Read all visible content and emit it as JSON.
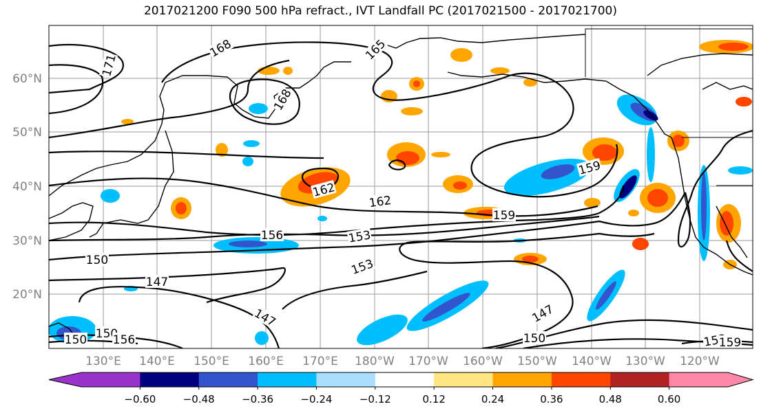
{
  "title": "2017021200 F090 500 hPa refract., IVT Landfall PC (2017021500 - 2017021700)",
  "lat_labels": [
    "60°N",
    "50°N",
    "40°N",
    "30°N",
    "20°N"
  ],
  "lon_labels": [
    "130°E",
    "140°E",
    "150°E",
    "160°E",
    "170°E",
    "180°W",
    "170°W",
    "160°W",
    "150°W",
    "140°W",
    "130°W",
    "120°W"
  ],
  "contour_labels": [
    "168",
    "165",
    "171",
    "168",
    "162",
    "162",
    "159",
    "159",
    "156",
    "153",
    "153",
    "150",
    "147",
    "147",
    "147",
    "150",
    "150",
    "153",
    "159",
    "156",
    "150"
  ],
  "colorbar": {
    "ticks": [
      "−0.60",
      "−0.48",
      "−0.36",
      "−0.24",
      "−0.12",
      "0.12",
      "0.24",
      "0.36",
      "0.48",
      "0.60"
    ],
    "colors": [
      "#9933cc",
      "#000080",
      "#3355cc",
      "#00bfff",
      "#aadfff",
      "#ffffff",
      "#ffe680",
      "#ffa500",
      "#ff4500",
      "#b22222",
      "#ff88aa"
    ]
  }
}
